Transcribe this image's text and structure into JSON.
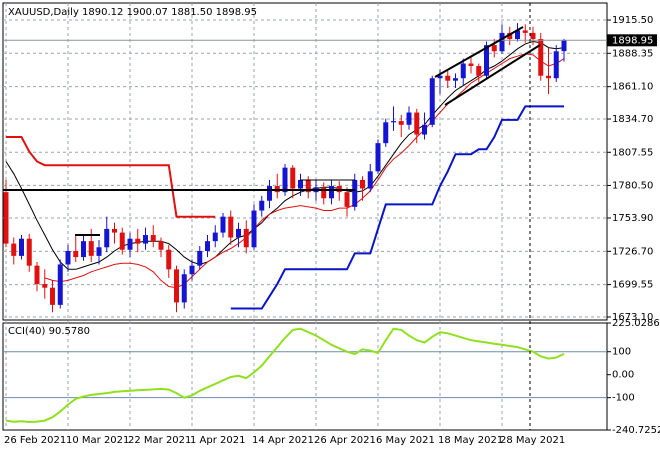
{
  "chart_data": [
    {
      "type": "candlestick",
      "title": "XAUUSD,Daily  1890.12 1900.07 1881.50 1898.95",
      "categories": [
        "26 Feb 2021",
        null,
        null,
        null,
        null,
        null,
        null,
        null,
        "10 Mar 2021",
        null,
        null,
        null,
        null,
        null,
        null,
        null,
        "22 Mar 2021",
        null,
        null,
        null,
        null,
        null,
        null,
        null,
        "1 Apr 2021",
        null,
        null,
        null,
        null,
        null,
        null,
        null,
        "14 Apr 2021",
        null,
        null,
        null,
        null,
        null,
        null,
        null,
        "26 Apr 2021",
        null,
        null,
        null,
        null,
        null,
        null,
        null,
        "6 May 2021",
        null,
        null,
        null,
        null,
        null,
        null,
        null,
        "18 May 2021",
        null,
        null,
        null,
        null,
        null,
        null,
        null,
        "28 May 2021",
        null,
        null,
        null,
        null,
        null,
        null,
        null,
        null
      ],
      "open": [
        1775,
        1733,
        1723,
        1737,
        1715,
        1700,
        1697,
        1683,
        1716,
        1727,
        1722,
        1735,
        1723,
        1730,
        1745,
        1742,
        1728,
        1737,
        1733,
        1740,
        1735,
        1728,
        1712,
        1685,
        1708,
        1715,
        1727,
        1735,
        1742,
        1755,
        1738,
        1745,
        1730,
        1760,
        1768,
        1780,
        1775,
        1795,
        1778,
        1785,
        1775,
        1779,
        1770,
        1780,
        1775,
        1763,
        1785,
        1778,
        1792,
        1815,
        1832,
        1833,
        1830,
        1840,
        1822,
        1830,
        1868,
        1870,
        1866,
        1868,
        1880,
        1878,
        1870,
        1895,
        1890,
        1905,
        1900,
        1907,
        1905,
        1900,
        1870,
        1868,
        1890.12
      ],
      "high": [
        1785,
        1738,
        1740,
        1741,
        1718,
        1712,
        1703,
        1720,
        1732,
        1740,
        1740,
        1745,
        1736,
        1755,
        1750,
        1746,
        1742,
        1745,
        1746,
        1748,
        1738,
        1732,
        1715,
        1712,
        1720,
        1731,
        1740,
        1748,
        1758,
        1760,
        1750,
        1752,
        1765,
        1772,
        1785,
        1790,
        1798,
        1797,
        1790,
        1788,
        1785,
        1783,
        1785,
        1784,
        1779,
        1790,
        1788,
        1798,
        1818,
        1835,
        1845,
        1838,
        1845,
        1843,
        1840,
        1870,
        1875,
        1874,
        1872,
        1884,
        1886,
        1880,
        1898,
        1900,
        1912,
        1910,
        1913,
        1912,
        1910,
        1905,
        1893,
        1895,
        1900.07
      ],
      "low": [
        1730,
        1716,
        1720,
        1710,
        1694,
        1688,
        1677,
        1680,
        1710,
        1718,
        1719,
        1718,
        1716,
        1726,
        1733,
        1724,
        1722,
        1726,
        1728,
        1730,
        1722,
        1705,
        1677,
        1680,
        1703,
        1712,
        1722,
        1730,
        1738,
        1732,
        1730,
        1725,
        1728,
        1755,
        1762,
        1770,
        1772,
        1770,
        1772,
        1770,
        1768,
        1765,
        1765,
        1768,
        1755,
        1760,
        1768,
        1775,
        1790,
        1812,
        1825,
        1820,
        1826,
        1815,
        1818,
        1828,
        1855,
        1860,
        1860,
        1862,
        1872,
        1865,
        1868,
        1885,
        1888,
        1895,
        1898,
        1897,
        1895,
        1866,
        1855,
        1865,
        1881.5
      ],
      "close": [
        1733,
        1723,
        1737,
        1715,
        1700,
        1697,
        1683,
        1716,
        1727,
        1722,
        1735,
        1723,
        1730,
        1745,
        1742,
        1728,
        1737,
        1733,
        1740,
        1735,
        1728,
        1712,
        1685,
        1708,
        1715,
        1727,
        1735,
        1742,
        1755,
        1738,
        1745,
        1730,
        1760,
        1768,
        1780,
        1775,
        1795,
        1778,
        1785,
        1775,
        1779,
        1770,
        1780,
        1775,
        1763,
        1785,
        1778,
        1792,
        1815,
        1832,
        1833,
        1830,
        1840,
        1822,
        1830,
        1868,
        1870,
        1866,
        1868,
        1880,
        1878,
        1870,
        1895,
        1890,
        1905,
        1900,
        1907,
        1905,
        1900,
        1870,
        1868,
        1890,
        1898.95
      ],
      "up_color": "#1414d2",
      "down_color": "#e01010",
      "overlays": [
        {
          "color": "#000000",
          "values": [
            1800,
            1790,
            1778,
            1765,
            1752,
            1740,
            1728,
            1718,
            1712,
            1712,
            1714,
            1716,
            1718,
            1722,
            1727,
            1731,
            1733,
            1734,
            1735,
            1735,
            1735,
            1733,
            1728,
            1722,
            1718,
            1716,
            1718,
            1722,
            1728,
            1734,
            1738,
            1740,
            1745,
            1750,
            1757,
            1762,
            1768,
            1772,
            1775,
            1777,
            1778,
            1779,
            1779,
            1778,
            1776,
            1775,
            1776,
            1780,
            1788,
            1797,
            1806,
            1815,
            1822,
            1826,
            1830,
            1838,
            1845,
            1852,
            1858,
            1862,
            1866,
            1870,
            1875,
            1878,
            1882,
            1887,
            1892,
            1896,
            1898,
            1897,
            1893,
            1892,
            1893
          ]
        },
        {
          "color": "#e01010",
          "values": [
            null,
            null,
            null,
            null,
            null,
            1705,
            1703,
            1702,
            1703,
            1705,
            1707,
            1710,
            1712,
            1714,
            1716,
            1717,
            1717,
            1716,
            1714,
            1710,
            1703,
            1698,
            1697,
            1700,
            1706,
            1712,
            1718,
            1722,
            1726,
            1729,
            1733,
            1738,
            1745,
            1752,
            1757,
            1760,
            1762,
            1763,
            1764,
            1763,
            1762,
            1760,
            1760,
            1762,
            1762,
            1765,
            1770,
            1776,
            1785,
            1795,
            1802,
            1807,
            1813,
            1820,
            1826,
            1833,
            1840,
            1847,
            1852,
            1858,
            1864,
            1868,
            1872,
            1876,
            1880,
            1884,
            1886,
            1888,
            1887,
            1882,
            1878,
            1880,
            1884
          ]
        },
        {
          "color": "#e01010",
          "values": [
            1820,
            1820,
            1820,
            1808,
            1800,
            1797,
            1797,
            1797,
            1797,
            1797,
            1797,
            1797,
            1797,
            1797,
            1797,
            1797,
            1797,
            1797,
            1797,
            1797,
            1797,
            1797,
            1755,
            1755,
            1755,
            1755,
            1755,
            1755,
            null,
            null,
            null,
            null,
            null,
            null,
            null,
            null,
            null,
            null,
            null,
            null,
            null,
            null,
            null,
            null,
            null,
            null,
            null,
            null,
            null,
            null,
            null,
            null,
            null,
            null,
            null,
            null,
            null,
            null,
            null,
            null,
            null,
            null,
            null,
            null,
            null,
            null,
            null,
            null,
            null,
            null,
            null,
            null,
            null
          ]
        },
        {
          "color": "#0a14c8",
          "values": [
            null,
            null,
            null,
            null,
            null,
            null,
            null,
            null,
            null,
            null,
            null,
            null,
            null,
            null,
            null,
            null,
            null,
            null,
            null,
            null,
            null,
            null,
            null,
            null,
            null,
            null,
            null,
            null,
            null,
            1680,
            1680,
            1680,
            1680,
            1680,
            1690,
            1700,
            1712,
            1712,
            1712,
            1712,
            1712,
            1712,
            1712,
            1712,
            1712,
            1725,
            1725,
            1725,
            1745,
            1765,
            1765,
            1765,
            1765,
            1765,
            1765,
            1765,
            1780,
            1792,
            1806,
            1806,
            1806,
            1810,
            1810,
            1820,
            1834,
            1834,
            1834,
            1845,
            1845,
            1845,
            1845,
            1845,
            1845
          ]
        }
      ],
      "last_price": 1898.95,
      "ylim": [
        1670.65,
        1929.4
      ],
      "yticks": [
        {
          "value": 1915.5,
          "label": "1915.50"
        },
        1888.35,
        {
          "value": 1861.1,
          "label": "1861.10"
        },
        {
          "value": 1834.7,
          "label": "1834.70"
        },
        1807.55,
        {
          "value": 1780.5,
          "label": "1780.50"
        },
        {
          "value": 1753.9,
          "label": "1753.90"
        },
        {
          "value": 1726.7,
          "label": "1726.70"
        },
        1699.55,
        {
          "value": 1673.1,
          "label": "1673.10"
        }
      ],
      "grid": true
    },
    {
      "type": "line",
      "title": "CCI(40) 90.5780",
      "color": "#90e020",
      "values": [
        -200,
        -205,
        -203,
        -206,
        -204,
        -200,
        -185,
        -160,
        -130,
        -105,
        -95,
        -88,
        -84,
        -80,
        -75,
        -72,
        -70,
        -68,
        -66,
        -64,
        -62,
        -65,
        -80,
        -100,
        -90,
        -70,
        -55,
        -40,
        -25,
        -10,
        -5,
        -15,
        10,
        40,
        80,
        120,
        160,
        195,
        200,
        185,
        170,
        150,
        130,
        115,
        100,
        90,
        110,
        105,
        95,
        150,
        200,
        195,
        170,
        150,
        140,
        165,
        185,
        180,
        170,
        160,
        150,
        145,
        140,
        135,
        130,
        125,
        120,
        110,
        100,
        80,
        70,
        75,
        90.578
      ],
      "ylim": [
        -240.7252,
        225.0286
      ],
      "yticks": [
        225.0286,
        100,
        {
          "value": 0,
          "label": "0.00"
        },
        -100,
        -240.7252
      ],
      "levels": [
        100,
        -100
      ]
    }
  ]
}
